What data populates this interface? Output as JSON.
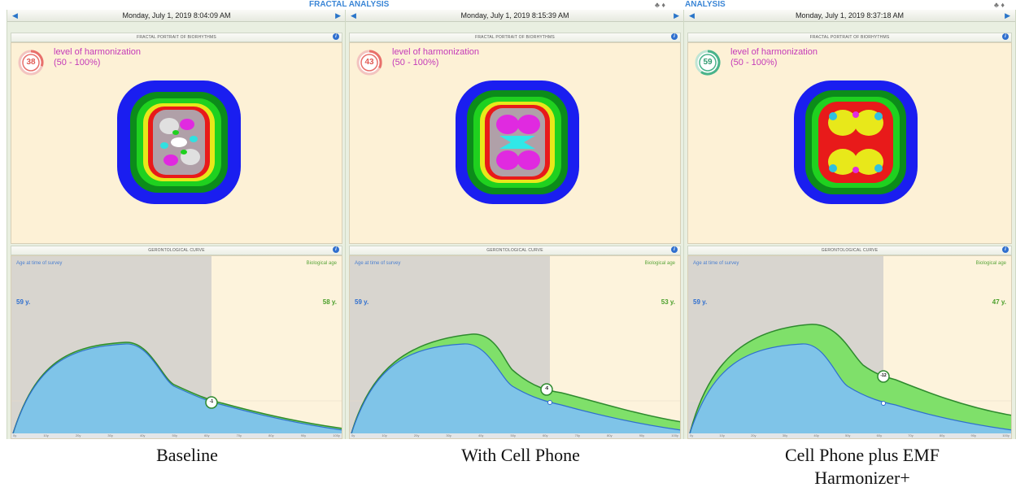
{
  "header": {
    "title": "FRACTAL ANALYSIS",
    "title_partial": "ANALYSIS"
  },
  "panels": [
    {
      "date": "Monday, July 1, 2019 8:04:09 AM",
      "fractal_title": "FRACTAL PORTRAIT OF BIORHYTHMS",
      "harmonization": {
        "value": "38",
        "label": "level of harmonization",
        "range": "(50 - 100%)",
        "color": "#e8706b"
      },
      "curve": {
        "title": "GERONTOLOGICAL CURVE",
        "age_label": "Age at time of survey",
        "bio_label": "Biological age",
        "age_value": "59 y.",
        "bio_value": "58 y.",
        "diff": "-1"
      }
    },
    {
      "date": "Monday, July 1, 2019 8:15:39 AM",
      "fractal_title": "FRACTAL PORTRAIT OF BIORHYTHMS",
      "harmonization": {
        "value": "43",
        "label": "level of harmonization",
        "range": "(50 - 100%)",
        "color": "#e8706b"
      },
      "curve": {
        "title": "GERONTOLOGICAL CURVE",
        "age_label": "Age at time of survey",
        "bio_label": "Biological age",
        "age_value": "59 y.",
        "bio_value": "53 y.",
        "diff": "-6"
      }
    },
    {
      "date": "Monday, July 1, 2019 8:37:18 AM",
      "fractal_title": "FRACTAL PORTRAIT OF BIORHYTHMS",
      "harmonization": {
        "value": "59",
        "label": "level of harmonization",
        "range": "(50 - 100%)",
        "color": "#49b38a"
      },
      "curve": {
        "title": "GERONTOLOGICAL CURVE",
        "age_label": "Age at time of survey",
        "bio_label": "Biological age",
        "age_value": "59 y.",
        "bio_value": "47 y.",
        "diff": "-12"
      }
    }
  ],
  "axis_ticks": [
    "0y",
    "10y",
    "20y",
    "30y",
    "40y",
    "50y",
    "60y",
    "70y",
    "80y",
    "90y",
    "100y"
  ],
  "captions": {
    "c1": "Baseline",
    "c2": "With Cell Phone",
    "c3_line1": "Cell Phone plus EMF",
    "c3_line2": "Harmonizer+"
  },
  "colors": {
    "accent": "#3b86d6",
    "curve_blue": "#7fc4e8",
    "curve_green": "#7fe06a",
    "harmonization_text": "#c43ab8"
  }
}
